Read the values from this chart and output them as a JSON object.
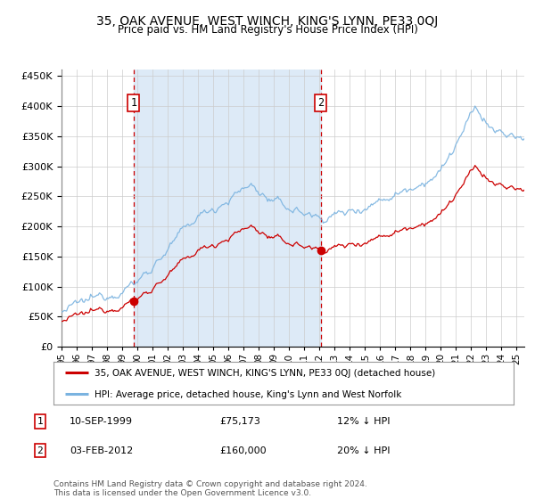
{
  "title": "35, OAK AVENUE, WEST WINCH, KING'S LYNN, PE33 0QJ",
  "subtitle": "Price paid vs. HM Land Registry's House Price Index (HPI)",
  "legend_line1": "35, OAK AVENUE, WEST WINCH, KING'S LYNN, PE33 0QJ (detached house)",
  "legend_line2": "HPI: Average price, detached house, King's Lynn and West Norfolk",
  "annotation1_date": "10-SEP-1999",
  "annotation1_price": "£75,173",
  "annotation1_hpi": "12% ↓ HPI",
  "annotation2_date": "03-FEB-2012",
  "annotation2_price": "£160,000",
  "annotation2_hpi": "20% ↓ HPI",
  "footer": "Contains HM Land Registry data © Crown copyright and database right 2024.\nThis data is licensed under the Open Government Licence v3.0.",
  "sale1_year": 1999.75,
  "sale1_price": 75173,
  "sale2_year": 2012.08,
  "sale2_price": 160000,
  "hpi_color": "#7ab3e0",
  "property_color": "#cc0000",
  "sale_dot_color": "#cc0000",
  "dashed_line_color": "#cc0000",
  "shaded_color": "#ddeaf7",
  "background_color": "#ffffff",
  "grid_color": "#cccccc",
  "ylim": [
    0,
    460000
  ],
  "xlim_start": 1995.0,
  "xlim_end": 2025.5
}
